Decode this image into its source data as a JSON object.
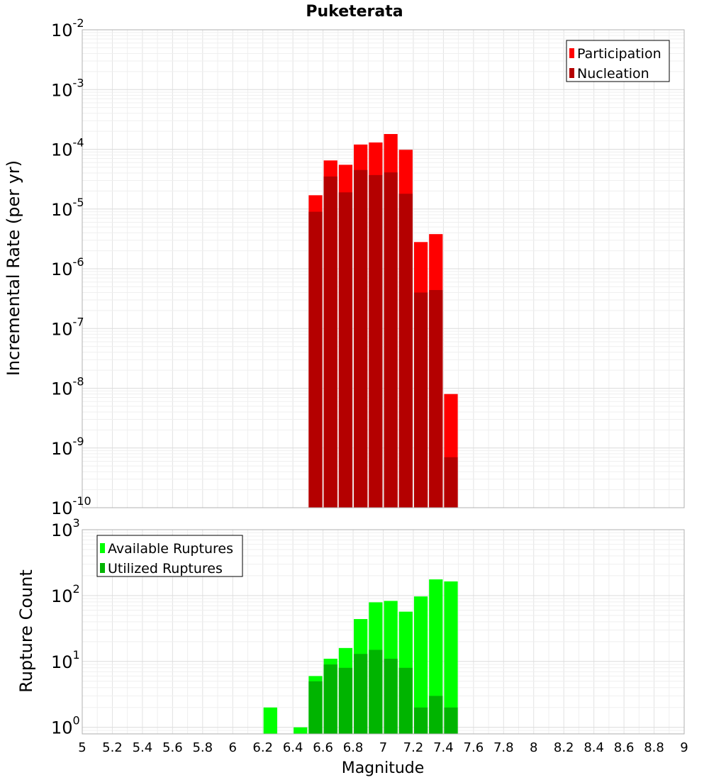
{
  "chart_data": [
    {
      "type": "bar",
      "title": "Puketerata",
      "xlabel": "",
      "ylabel": "Incremental Rate (per yr)",
      "yscale": "log",
      "xlim": [
        5,
        9
      ],
      "ylim_exp": [
        -10,
        -2
      ],
      "ytick_base": "10",
      "yticks_exp": [
        "-10",
        "-9",
        "-8",
        "-7",
        "-6",
        "-5",
        "-4",
        "-3",
        "-2"
      ],
      "legend_position": "top-right",
      "x": [
        6.55,
        6.65,
        6.75,
        6.85,
        6.95,
        7.05,
        7.15,
        7.25,
        7.35,
        7.45
      ],
      "series": [
        {
          "name": "Participation",
          "color": "#ff0000",
          "values": [
            1.7e-05,
            6.5e-05,
            5.5e-05,
            0.00012,
            0.00013,
            0.00018,
            9.8e-05,
            2.8e-06,
            3.8e-06,
            8e-09
          ]
        },
        {
          "name": "Nucleation",
          "color": "#b40000",
          "values": [
            9e-06,
            3.5e-05,
            1.9e-05,
            4.5e-05,
            3.7e-05,
            4.1e-05,
            1.8e-05,
            4e-07,
            4.4e-07,
            7e-10
          ]
        }
      ]
    },
    {
      "type": "bar",
      "xlabel": "Magnitude",
      "ylabel": "Rupture Count",
      "yscale": "log",
      "xlim": [
        5,
        9
      ],
      "ylim_exp": [
        -0.1,
        3
      ],
      "ytick_base": "10",
      "yticks_exp": [
        "0",
        "1",
        "2",
        "3"
      ],
      "legend_position": "top-left",
      "xticks": [
        "5",
        "5.2",
        "5.4",
        "5.6",
        "5.8",
        "6",
        "6.2",
        "6.4",
        "6.6",
        "6.8",
        "7",
        "7.2",
        "7.4",
        "7.6",
        "7.8",
        "8",
        "8.2",
        "8.4",
        "8.6",
        "8.8",
        "9"
      ],
      "x": [
        6.25,
        6.45,
        6.55,
        6.65,
        6.75,
        6.85,
        6.95,
        7.05,
        7.15,
        7.25,
        7.35,
        7.45
      ],
      "series": [
        {
          "name": "Available Ruptures",
          "color": "#00ff00",
          "values": [
            2,
            1,
            6,
            11,
            16,
            44,
            79,
            83,
            57,
            97,
            176,
            164
          ]
        },
        {
          "name": "Utilized Ruptures",
          "color": "#00b400",
          "values": [
            0,
            0,
            5,
            9,
            8,
            13,
            15,
            11,
            8,
            2,
            3,
            2
          ]
        }
      ]
    }
  ]
}
